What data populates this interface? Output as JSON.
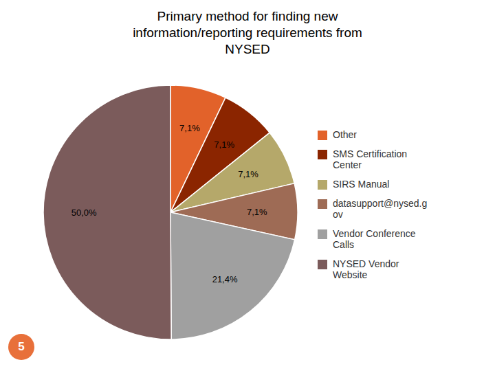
{
  "chart_data": {
    "type": "pie",
    "title": "Primary method for finding new\ninformation/reporting requirements from\nNYSED",
    "categories": [
      "Other",
      "SMS Certification\nCenter",
      "SIRS Manual",
      "datasupport@nysed.g\nov",
      "Vendor Conference\nCalls",
      "NYSED Vendor\nWebsite"
    ],
    "values": [
      7.1,
      7.1,
      7.1,
      7.1,
      21.4,
      50.0
    ],
    "value_labels": [
      "7,1%",
      "7,1%",
      "7,1%",
      "7,1%",
      "21,4%",
      "50,0%"
    ],
    "colors": [
      "#E2622A",
      "#8B2500",
      "#B5A86A",
      "#9E6B55",
      "#A0A0A0",
      "#7B5B5B"
    ],
    "data_labels": true,
    "legend": "right",
    "annotations": [
      "5"
    ]
  }
}
